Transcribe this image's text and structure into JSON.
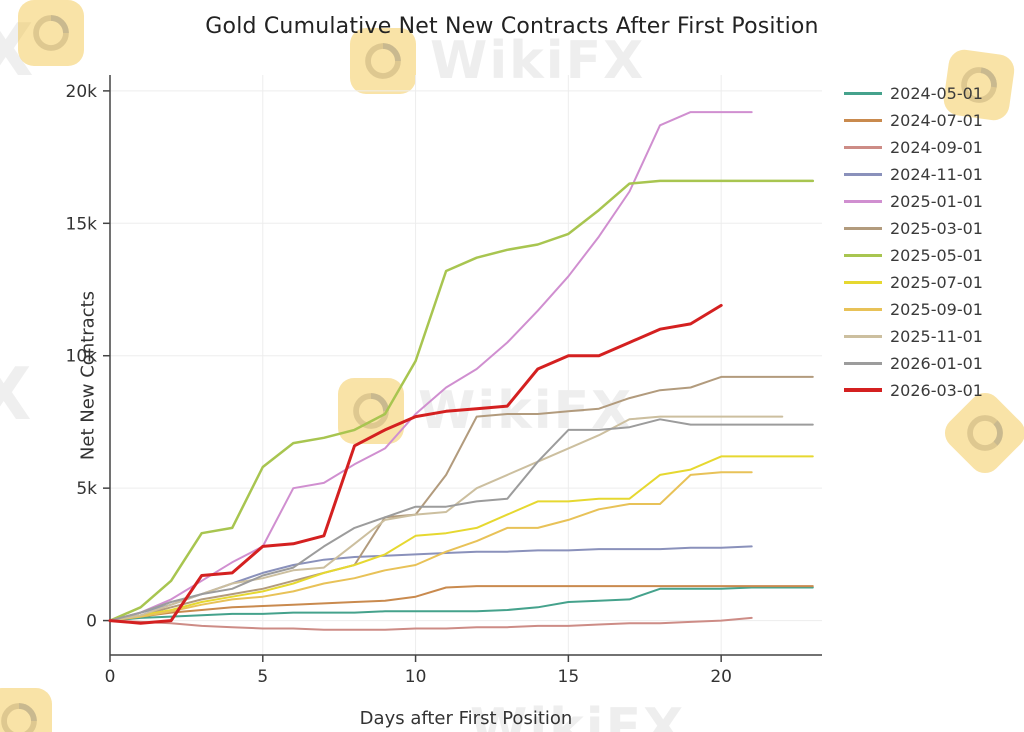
{
  "title": "Gold Cumulative Net New Contracts After First Position",
  "watermark": {
    "text": "WikiFX",
    "letter": "X",
    "badge_color": "#f2c23e",
    "swirl_color": "#b8860b"
  },
  "chart_data": {
    "type": "line",
    "title": "Gold Cumulative Net New Contracts After First Position",
    "xlabel": "Days after First Position",
    "ylabel": "Net New Contracts",
    "xlim": [
      0,
      23.3
    ],
    "ylim": [
      -1300,
      20600
    ],
    "xticks": [
      0,
      5,
      10,
      15,
      20
    ],
    "yticks": [
      0,
      5000,
      10000,
      15000,
      20000
    ],
    "ytick_labels": [
      "0",
      "5k",
      "10k",
      "15k",
      "20k"
    ],
    "grid": true,
    "legend_position": "right",
    "series": [
      {
        "name": "2024-05-01",
        "color": "#45a28c",
        "width": 2,
        "values": [
          0,
          100,
          150,
          200,
          250,
          250,
          300,
          300,
          300,
          350,
          350,
          350,
          350,
          400,
          500,
          700,
          750,
          800,
          1200,
          1200,
          1200,
          1250,
          1250,
          1250
        ]
      },
      {
        "name": "2024-07-01",
        "color": "#c98a4e",
        "width": 2,
        "values": [
          0,
          150,
          300,
          400,
          500,
          550,
          600,
          650,
          700,
          750,
          900,
          1250,
          1300,
          1300,
          1300,
          1300,
          1300,
          1300,
          1300,
          1300,
          1300,
          1300,
          1300,
          1300
        ]
      },
      {
        "name": "2024-09-01",
        "color": "#cd8c86",
        "width": 2,
        "values": [
          0,
          -50,
          -100,
          -200,
          -250,
          -300,
          -300,
          -350,
          -350,
          -350,
          -300,
          -300,
          -250,
          -250,
          -200,
          -200,
          -150,
          -100,
          -100,
          -50,
          0,
          100
        ]
      },
      {
        "name": "2024-11-01",
        "color": "#8a91bb",
        "width": 2,
        "values": [
          0,
          300,
          600,
          1000,
          1400,
          1800,
          2100,
          2300,
          2400,
          2450,
          2500,
          2550,
          2600,
          2600,
          2650,
          2650,
          2700,
          2700,
          2700,
          2750,
          2750,
          2800
        ]
      },
      {
        "name": "2025-01-01",
        "color": "#d08fd0",
        "width": 2,
        "values": [
          0,
          300,
          800,
          1500,
          2200,
          2800,
          5000,
          5200,
          5900,
          6500,
          7800,
          8800,
          9500,
          10500,
          11700,
          13000,
          14500,
          16200,
          18700,
          19200,
          19200,
          19200
        ]
      },
      {
        "name": "2025-03-01",
        "color": "#b29b7d",
        "width": 2,
        "values": [
          0,
          200,
          500,
          800,
          1000,
          1200,
          1500,
          1800,
          2100,
          3900,
          4000,
          5500,
          7700,
          7800,
          7800,
          7900,
          8000,
          8400,
          8700,
          8800,
          9200,
          9200,
          9200,
          9200
        ]
      },
      {
        "name": "2025-05-01",
        "color": "#a8c550",
        "width": 2.5,
        "values": [
          0,
          500,
          1500,
          3300,
          3500,
          5800,
          6700,
          6900,
          7200,
          7800,
          9800,
          13200,
          13700,
          14000,
          14200,
          14600,
          15500,
          16500,
          16600,
          16600,
          16600,
          16600,
          16600,
          16600
        ]
      },
      {
        "name": "2025-07-01",
        "color": "#e6d830",
        "width": 2,
        "values": [
          0,
          200,
          400,
          700,
          900,
          1100,
          1400,
          1800,
          2100,
          2500,
          3200,
          3300,
          3500,
          4000,
          4500,
          4500,
          4600,
          4600,
          5500,
          5700,
          6200,
          6200,
          6200,
          6200
        ]
      },
      {
        "name": "2025-09-01",
        "color": "#e8c258",
        "width": 2,
        "values": [
          0,
          150,
          350,
          600,
          800,
          900,
          1100,
          1400,
          1600,
          1900,
          2100,
          2600,
          3000,
          3500,
          3500,
          3800,
          4200,
          4400,
          4400,
          5500,
          5600,
          5600
        ]
      },
      {
        "name": "2025-11-01",
        "color": "#ccbf9f",
        "width": 2,
        "values": [
          0,
          200,
          600,
          1000,
          1400,
          1600,
          1900,
          2000,
          2900,
          3800,
          4000,
          4100,
          5000,
          5500,
          6000,
          6500,
          7000,
          7600,
          7700,
          7700,
          7700,
          7700,
          7700
        ]
      },
      {
        "name": "2026-01-01",
        "color": "#9c9c9c",
        "width": 2,
        "values": [
          0,
          300,
          700,
          1000,
          1200,
          1700,
          2000,
          2800,
          3500,
          3900,
          4300,
          4300,
          4500,
          4600,
          6000,
          7200,
          7200,
          7300,
          7600,
          7400,
          7400,
          7400,
          7400,
          7400
        ]
      },
      {
        "name": "2026-03-01",
        "color": "#d42020",
        "width": 3,
        "values": [
          0,
          -100,
          0,
          1700,
          1800,
          2800,
          2900,
          3200,
          6600,
          7200,
          7700,
          7900,
          8000,
          8100,
          9500,
          10000,
          10000,
          10500,
          11000,
          11200,
          11900
        ]
      }
    ]
  }
}
